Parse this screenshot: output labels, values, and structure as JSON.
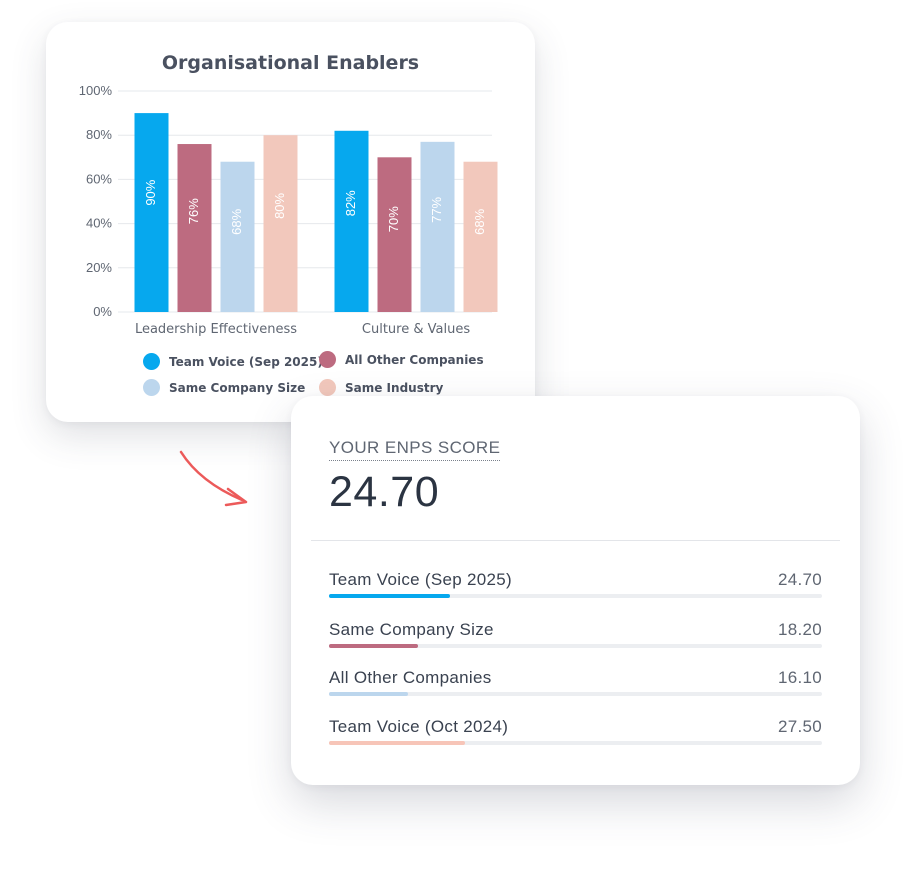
{
  "chart_data": {
    "type": "bar",
    "title": "Organisational Enablers",
    "categories": [
      "Leadership Effectiveness",
      "Culture & Values"
    ],
    "series": [
      {
        "name": "Team Voice (Sep 2025)",
        "color": "#06a8ee",
        "values": [
          90,
          82
        ],
        "labels": [
          "90%",
          "82%"
        ]
      },
      {
        "name": "All Other Companies",
        "color": "#bd6b80",
        "values": [
          76,
          70
        ],
        "labels": [
          "76%",
          "70%"
        ]
      },
      {
        "name": "Same Company Size",
        "color": "#bcd6ed",
        "values": [
          68,
          77
        ],
        "labels": [
          "68%",
          "77%"
        ]
      },
      {
        "name": "Same Industry",
        "color": "#f2c8bc",
        "values": [
          80,
          68
        ],
        "labels": [
          "80%",
          "68%"
        ]
      }
    ],
    "ylim": [
      0,
      100
    ],
    "yticks": [
      0,
      20,
      40,
      60,
      80,
      100
    ],
    "ytick_labels": [
      "0%",
      "20%",
      "40%",
      "60%",
      "80%",
      "100%"
    ],
    "grid": true,
    "legend_placement": "bottom",
    "legend_order": [
      "Team Voice (Sep 2025)",
      "All Other Companies",
      "Same Company Size",
      "Same Industry"
    ]
  },
  "enps": {
    "heading": "YOUR ENPS SCORE",
    "score": "24.70",
    "rows": [
      {
        "label": "Team Voice (Sep 2025)",
        "value": "24.70",
        "fraction": 0.245,
        "color": "#06a8ee"
      },
      {
        "label": "Same Company Size",
        "value": "18.20",
        "fraction": 0.18,
        "color": "#bd6b80"
      },
      {
        "label": "All Other Companies",
        "value": "16.10",
        "fraction": 0.16,
        "color": "#bcd6ed"
      },
      {
        "label": "Team Voice (Oct 2024)",
        "value": "27.50",
        "fraction": 0.275,
        "color": "#f7c5b8"
      }
    ]
  },
  "arrow_color": "#ec5a5a"
}
